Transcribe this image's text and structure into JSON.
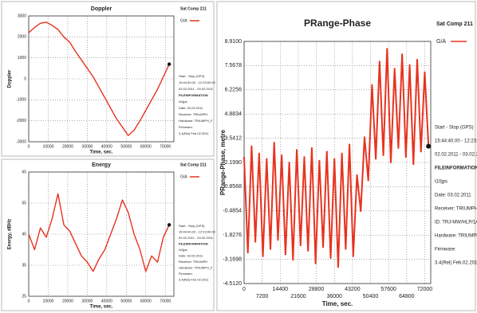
{
  "chart_data": [
    {
      "type": "line",
      "title": "Doppler",
      "sat": "Sat Comp 211",
      "xlabel": "Time, sec.",
      "ylabel": "Doppler",
      "xlim": [
        0,
        74400
      ],
      "xticks": [
        0,
        10000,
        20000,
        30000,
        40000,
        50000,
        60000,
        70000
      ],
      "ylim": [
        -3000,
        3000
      ],
      "yticks": [
        -3000,
        -2000,
        -1000,
        0,
        1000,
        2000,
        3000
      ],
      "grid": true,
      "x": [
        0,
        3000,
        6000,
        9000,
        12000,
        15000,
        18000,
        21000,
        24000,
        27000,
        30000,
        33000,
        36000,
        39000,
        42000,
        45000,
        48000,
        51000,
        54000,
        57000,
        60000,
        63000,
        66000,
        69000,
        72000
      ],
      "series": [
        {
          "name": "G/A",
          "color": "#e8321e",
          "values": [
            2200,
            2450,
            2650,
            2700,
            2550,
            2350,
            2000,
            1750,
            1300,
            900,
            500,
            100,
            -400,
            -900,
            -1400,
            -1900,
            -2300,
            -2700,
            -2450,
            -2000,
            -1500,
            -1000,
            -500,
            100,
            700
          ]
        }
      ],
      "info": [
        "Start - Stop (GPS)",
        "15:44:40.00 - 12:23:00.00",
        "02.02.2011 - 03.02.2011",
        "FILEINFORMATION",
        "t10jps",
        "Date: 03.02.2011",
        "Receiver: TRIUMPH",
        "Hardware: TRIUMPH_F",
        "Firmware:",
        "3.4(Rel) Feb.02.2011"
      ]
    },
    {
      "type": "line",
      "title": "Energy",
      "sat": "Sat Comp 211",
      "xlabel": "Time, sec.",
      "ylabel": "Energy, dBHz",
      "xlim": [
        0,
        74400
      ],
      "xticks": [
        0,
        10000,
        20000,
        30000,
        40000,
        50000,
        60000,
        70000
      ],
      "ylim": [
        25,
        65
      ],
      "yticks": [
        25,
        35,
        45,
        55,
        65
      ],
      "grid": true,
      "x": [
        0,
        3000,
        6000,
        9000,
        12000,
        15000,
        18000,
        21000,
        24000,
        27000,
        30000,
        33000,
        36000,
        39000,
        42000,
        45000,
        48000,
        51000,
        54000,
        57000,
        60000,
        63000,
        66000,
        69000,
        72000
      ],
      "series": [
        {
          "name": "G/A",
          "color": "#e8321e",
          "values": [
            45,
            40,
            47,
            44,
            50,
            58,
            48,
            46,
            42,
            38,
            36,
            33,
            37,
            40,
            45,
            50,
            56,
            52,
            45,
            40,
            33,
            38,
            36,
            44,
            48
          ]
        }
      ],
      "info": [
        "Start - Stop (GPS)",
        "15:44:40.00 - 12:23:00.00",
        "02.02.2011 - 03.02.2011",
        "FILEINFORMATION",
        "t10jps",
        "Date: 03.02.2011",
        "Receiver: TRIUMPH",
        "Hardware: TRIUMPH_F",
        "Firmware:",
        "3.4(Rel) Feb.02.2011"
      ]
    },
    {
      "type": "line",
      "title": "PRange-Phase",
      "sat": "Sat Comp 211",
      "xlabel": "Time, sec.",
      "ylabel": "PRange-Phase, metre",
      "xlim": [
        0,
        74400
      ],
      "xticks": [
        0,
        7200,
        14400,
        21600,
        28800,
        36000,
        43200,
        50400,
        57600,
        64800,
        72000
      ],
      "ylim": [
        -4.512,
        8.91
      ],
      "yticks": [
        {
          "value": 8.91,
          "label": "8.9100"
        },
        {
          "value": 7.5678,
          "label": "7.5678"
        },
        {
          "value": 6.2256,
          "label": "6.2256"
        },
        {
          "value": 4.8834,
          "label": "4.8834"
        },
        {
          "value": 3.5412,
          "label": "3.5412"
        },
        {
          "value": 2.199,
          "label": "2.1990"
        },
        {
          "value": 0.8568,
          "label": "0.8568"
        },
        {
          "value": -0.4854,
          "label": "-0.4854"
        },
        {
          "value": -1.8276,
          "label": "-1.8276"
        },
        {
          "value": -3.1698,
          "label": "-3.1698"
        },
        {
          "value": -4.512,
          "label": "-4.5120"
        }
      ],
      "grid": true,
      "x": [
        0,
        1500,
        3000,
        4500,
        6000,
        7500,
        9000,
        10500,
        12000,
        13500,
        15000,
        16500,
        18000,
        19500,
        21000,
        22500,
        24000,
        25500,
        27000,
        28500,
        30000,
        31500,
        33000,
        34500,
        36000,
        37500,
        39000,
        40500,
        42000,
        43500,
        45000,
        46500,
        48000,
        49500,
        51000,
        52500,
        54000,
        55500,
        57000,
        58500,
        60000,
        61500,
        63000,
        64500,
        66000,
        67500,
        69000,
        70500,
        72000,
        73500
      ],
      "series": [
        {
          "name": "G/A",
          "color": "#e8321e",
          "values": [
            2.5,
            -2.8,
            3.1,
            -2.2,
            2.7,
            -3.0,
            2.4,
            -2.6,
            3.3,
            -2.1,
            2.6,
            -2.9,
            2.2,
            -3.2,
            2.9,
            -2.4,
            2.5,
            -2.7,
            3.0,
            -3.4,
            2.3,
            -2.5,
            2.8,
            -3.1,
            2.4,
            -3.6,
            2.7,
            -2.6,
            3.2,
            -3.0,
            1.5,
            -0.5,
            3.6,
            1.2,
            6.5,
            2.4,
            7.8,
            2.6,
            8.5,
            2.2,
            7.4,
            3.0,
            8.2,
            2.5,
            7.6,
            2.1,
            7.9,
            2.8,
            7.2,
            3.1
          ]
        }
      ],
      "info": [
        "Start - Stop (GPS)",
        "15:44:40.00 - 12:23:00.00",
        "02.02.2011 - 03.02.2011",
        "FILEINFORMATION",
        "t10jps",
        "Date: 03.02.2011",
        "Receiver: TRIUMPH",
        "ID: TRJ-MW/HLP/1A40",
        "Hardware: TRIUMPH_F",
        "Firmware:",
        "3.4(Rel) Feb.02.2011"
      ]
    }
  ]
}
